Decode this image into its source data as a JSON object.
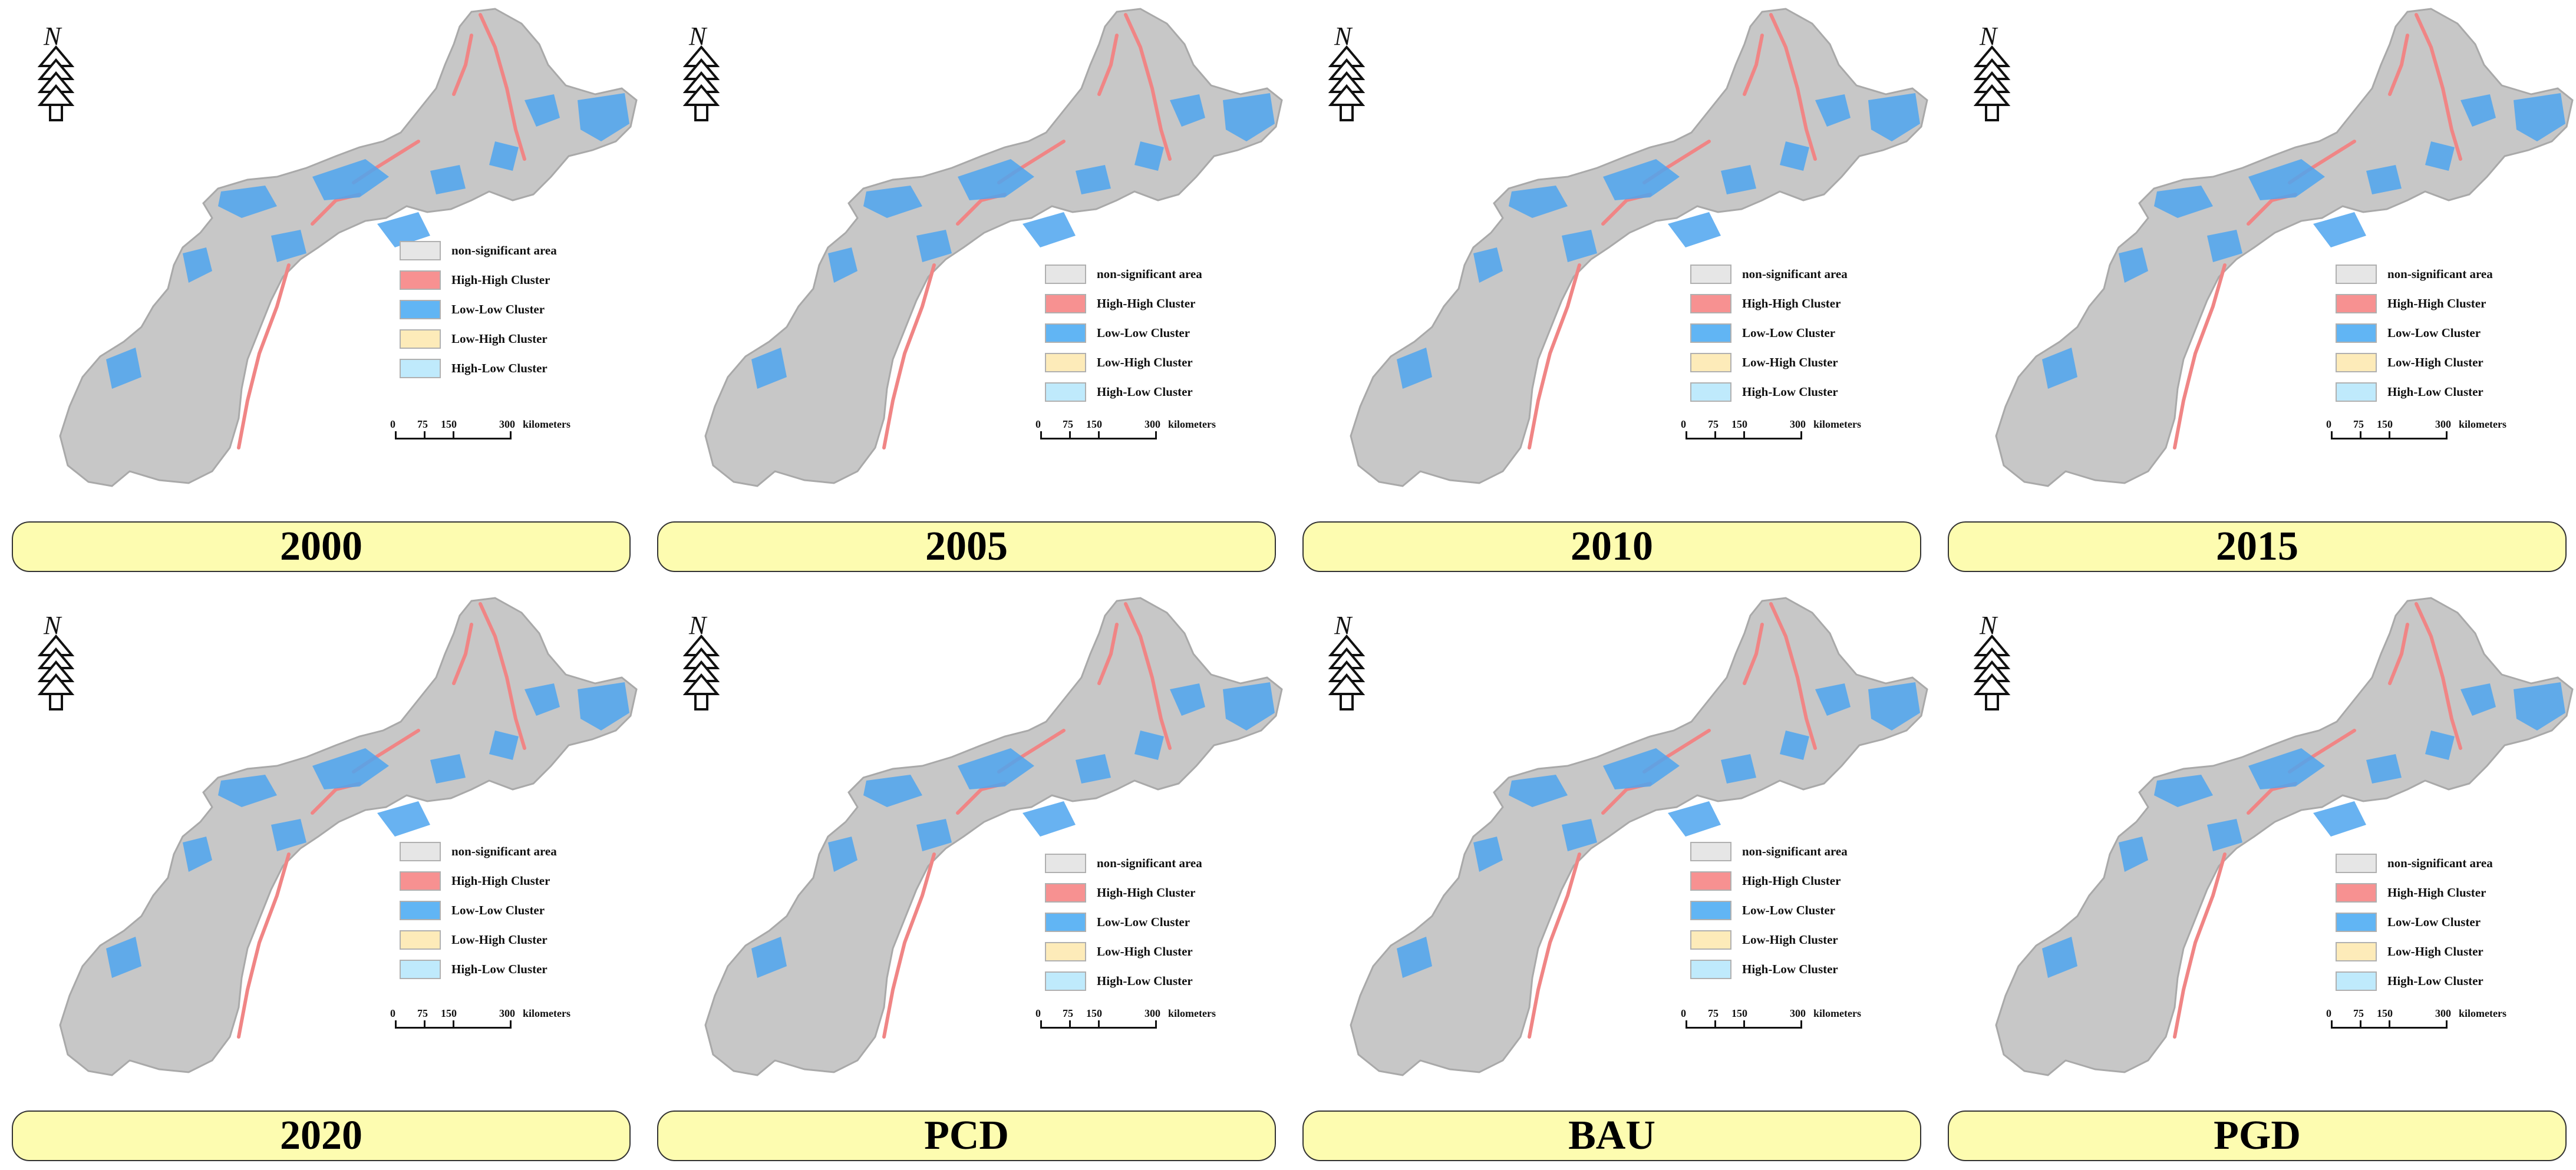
{
  "panels": [
    {
      "title": "2000"
    },
    {
      "title": "2005"
    },
    {
      "title": "2010"
    },
    {
      "title": "2015"
    },
    {
      "title": "2020"
    },
    {
      "title": "PCD"
    },
    {
      "title": "BAU"
    },
    {
      "title": "PGD"
    }
  ],
  "north_label": "N",
  "legend": [
    {
      "label": "non-significant area",
      "color": "#e6e6e6"
    },
    {
      "label": "High-High Cluster",
      "color": "#f79191"
    },
    {
      "label": "Low-Low Cluster",
      "color": "#61b5f4"
    },
    {
      "label": "Low-High Cluster",
      "color": "#fdebb9"
    },
    {
      "label": "High-Low Cluster",
      "color": "#bfeafc"
    }
  ],
  "scalebar": {
    "ticks": [
      "0",
      "75",
      "150",
      "300"
    ],
    "unit": "kilometers"
  },
  "colors": {
    "region_fill": "#c7c7c7",
    "region_stroke": "#a9a9a9",
    "high_high": "#f08585",
    "low_low": "#4ea4ee",
    "banner": "#fdfcb0"
  }
}
